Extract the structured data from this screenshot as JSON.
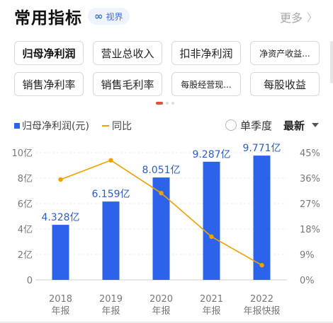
{
  "header": {
    "title": "常用指标",
    "view_badge_icon": "infinity-icon",
    "view_badge_label": "视界",
    "more_label": "更多",
    "more_icon": "chevron-right-icon"
  },
  "tags": [
    {
      "label": "归母净利润",
      "active": true
    },
    {
      "label": "营业总收入",
      "active": false
    },
    {
      "label": "扣非净利润",
      "active": false
    },
    {
      "label": "净资产收益...",
      "active": false
    },
    {
      "label": "销售净利率",
      "active": false
    },
    {
      "label": "销售毛利率",
      "active": false
    },
    {
      "label": "每股经营现...",
      "active": false
    },
    {
      "label": "每股收益",
      "active": false
    }
  ],
  "pager": {
    "pages": 3,
    "current": 1
  },
  "legend": {
    "bar_label": "归母净利润(元)",
    "line_label": "同比",
    "quarter_toggle_label": "单季度",
    "sort_label": "最新",
    "sort_icon": "caret-down-icon"
  },
  "colors": {
    "bar": "#2c63ea",
    "line": "#f0a000",
    "accent_red": "#e64b3c",
    "bar_label_text": "#2c5cc6"
  },
  "chart_data": {
    "type": "bar",
    "categories": [
      "2018",
      "2019",
      "2020",
      "2021",
      "2022"
    ],
    "category_sublabels": [
      "年报",
      "年报",
      "年报",
      "年报",
      "年报快报"
    ],
    "series": [
      {
        "name": "归母净利润(元)",
        "type": "bar",
        "axis": "left",
        "values": [
          4.328,
          6.159,
          8.051,
          9.287,
          9.771
        ],
        "data_labels": [
          "4.328亿",
          "6.159亿",
          "8.051亿",
          "9.287亿",
          "9.771亿"
        ]
      },
      {
        "name": "同比",
        "type": "line",
        "axis": "right",
        "values": [
          35.5,
          42.3,
          30.7,
          15.3,
          5.2
        ]
      }
    ],
    "left_axis": {
      "range": [
        0,
        10
      ],
      "ticks": [
        0,
        2,
        4,
        6,
        8,
        10
      ],
      "tick_labels": [
        "0",
        "2亿",
        "4亿",
        "6亿",
        "8亿",
        "10亿"
      ]
    },
    "right_axis": {
      "range": [
        0,
        45
      ],
      "ticks": [
        0,
        9,
        18,
        27,
        36,
        45
      ],
      "tick_labels": [
        "0%",
        "9%",
        "18%",
        "27%",
        "36%",
        "45%"
      ]
    },
    "grid": true,
    "legend_position": "top-left"
  }
}
